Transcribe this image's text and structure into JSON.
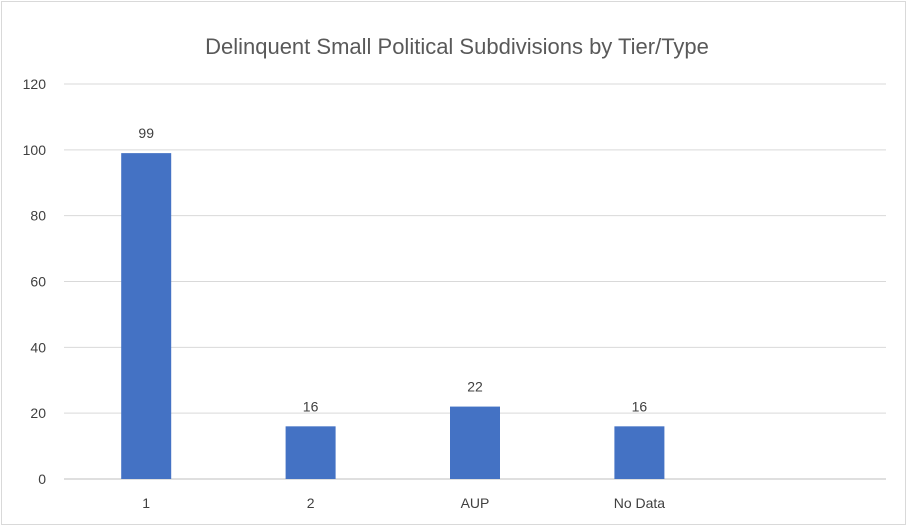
{
  "chart_data": {
    "type": "bar",
    "title": "Delinquent Small Political Subdivisions  by Tier/Type",
    "categories": [
      "1",
      "2",
      "AUP",
      "No Data"
    ],
    "values": [
      99,
      16,
      22,
      16
    ],
    "data_labels": [
      "99",
      "16",
      "22",
      "16"
    ],
    "ylim": [
      0,
      120
    ],
    "yticks": [
      0,
      20,
      40,
      60,
      80,
      100,
      120
    ],
    "ytick_labels": [
      "0",
      "20",
      "40",
      "60",
      "80",
      "100",
      "120"
    ],
    "grid": true,
    "legend": "none",
    "bar_color": "#4472C4"
  }
}
